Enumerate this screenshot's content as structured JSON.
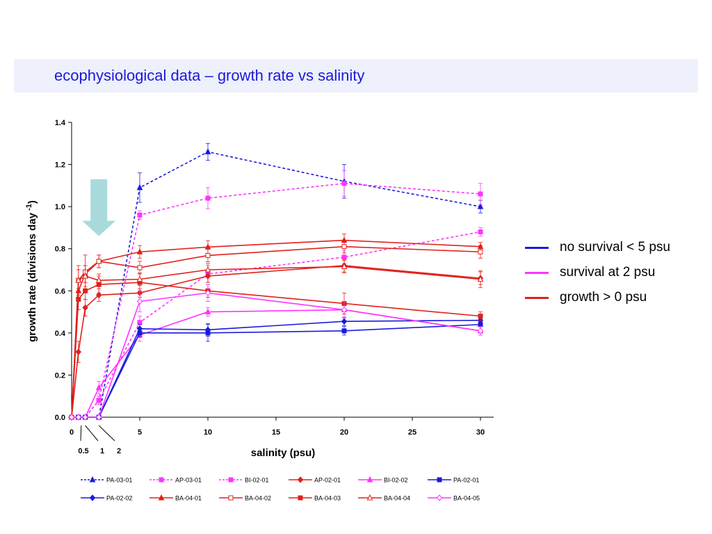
{
  "page": {
    "title": "ecophysiological data – growth rate vs salinity"
  },
  "side_legend": [
    {
      "label": "no survival < 5 psu",
      "color": "#1a1adc"
    },
    {
      "label": "survival at 2 psu",
      "color": "#ff33ff"
    },
    {
      "label": "growth > 0 psu",
      "color": "#e0201b"
    }
  ],
  "chart_data": {
    "type": "line",
    "xlabel": "salinity (psu)",
    "ylabel": "growth rate (divisions  day",
    "ylabel_sup": "-1",
    "ylabel_tail": ")",
    "xlim": [
      0,
      30
    ],
    "ylim": [
      0,
      1.4
    ],
    "xticks": [
      0,
      5,
      10,
      15,
      20,
      25,
      30
    ],
    "yticks": [
      "0.0",
      "0.2",
      "0.4",
      "0.6",
      "0.8",
      "1.0",
      "1.2",
      "1.4"
    ],
    "extra_xlabels": [
      "0.5",
      "1",
      "2"
    ],
    "extra_xvalues": [
      0.5,
      1,
      2
    ],
    "arrow": {
      "x": 2,
      "y_top": 1.13,
      "y_bottom": 0.86,
      "color": "#a8dadc"
    },
    "series": [
      {
        "name": "PA-03-01",
        "color": "#1a1adc",
        "dash": true,
        "marker": "triangle-filled",
        "x": [
          0,
          0.5,
          1,
          2,
          5,
          10,
          20,
          30
        ],
        "y": [
          0,
          0,
          0,
          0,
          1.09,
          1.26,
          1.12,
          1.0
        ],
        "err": [
          0,
          0,
          0,
          0,
          0.07,
          0.04,
          0.08,
          0.03
        ]
      },
      {
        "name": "AP-03-01",
        "color": "#ff33ff",
        "dash": true,
        "marker": "square-filled",
        "x": [
          0,
          0.5,
          1,
          2,
          5,
          10,
          20,
          30
        ],
        "y": [
          0,
          0,
          0,
          0.08,
          0.96,
          1.04,
          1.11,
          1.06
        ],
        "err": [
          0,
          0,
          0,
          0.02,
          0.02,
          0.05,
          0.06,
          0.05
        ]
      },
      {
        "name": "BI-02-01",
        "color": "#ff33ff",
        "dash": true,
        "marker": "square-filled",
        "x": [
          0,
          0.5,
          1,
          2,
          5,
          10,
          20,
          30
        ],
        "y": [
          0,
          0,
          0,
          0.08,
          0.45,
          0.68,
          0.76,
          0.88
        ],
        "err": [
          0,
          0,
          0,
          0.02,
          0.03,
          0.04,
          0.03,
          0.02
        ]
      },
      {
        "name": "AP-02-01",
        "color": "#e0201b",
        "dash": false,
        "marker": "diamond-filled",
        "x": [
          0,
          0.5,
          1,
          2,
          5,
          10,
          20,
          30
        ],
        "y": [
          0,
          0.31,
          0.52,
          0.58,
          0.59,
          0.67,
          0.72,
          0.66
        ],
        "err": [
          0,
          0.05,
          0.04,
          0.03,
          0.02,
          0.03,
          0.03,
          0.03
        ]
      },
      {
        "name": "BI-02-02",
        "color": "#ff33ff",
        "dash": false,
        "marker": "triangle-filled",
        "x": [
          0,
          0.5,
          1,
          2,
          5,
          10,
          20,
          30
        ],
        "y": [
          0,
          0,
          0,
          0.14,
          0.39,
          0.5,
          0.51,
          0.41
        ],
        "err": [
          0,
          0,
          0,
          0.03,
          0.03,
          0.02,
          0.02,
          0.02
        ]
      },
      {
        "name": "PA-02-01",
        "color": "#1a1adc",
        "dash": false,
        "marker": "square-filled",
        "x": [
          0,
          0.5,
          1,
          2,
          5,
          10,
          20,
          30
        ],
        "y": [
          0,
          0,
          0,
          0,
          0.4,
          0.4,
          0.41,
          0.44
        ],
        "err": [
          0,
          0,
          0,
          0,
          0.02,
          0.04,
          0.02,
          0.01
        ]
      },
      {
        "name": "PA-02-02",
        "color": "#1a1adc",
        "dash": false,
        "marker": "diamond-filled",
        "x": [
          0,
          0.5,
          1,
          2,
          5,
          10,
          20,
          30
        ],
        "y": [
          0,
          0,
          0,
          0,
          0.42,
          0.415,
          0.455,
          0.46
        ],
        "err": [
          0,
          0,
          0,
          0,
          0.02,
          0.03,
          0.02,
          0.01
        ]
      },
      {
        "name": "BA-04-01",
        "color": "#e0201b",
        "dash": false,
        "marker": "triangle-filled",
        "x": [
          0,
          0.5,
          1,
          2,
          5,
          10,
          20,
          30
        ],
        "y": [
          0,
          0.6,
          0.68,
          0.74,
          0.785,
          0.808,
          0.84,
          0.81
        ],
        "err": [
          0,
          0.04,
          0.04,
          0.03,
          0.03,
          0.03,
          0.03,
          0.02
        ]
      },
      {
        "name": "BA-04-02",
        "color": "#e0201b",
        "dash": false,
        "marker": "square-open",
        "x": [
          0,
          0.5,
          1,
          2,
          5,
          10,
          20,
          30
        ],
        "y": [
          0,
          0.65,
          0.69,
          0.74,
          0.71,
          0.768,
          0.81,
          0.785
        ],
        "err": [
          0,
          0.07,
          0.08,
          0.03,
          0.03,
          0.03,
          0.03,
          0.03
        ]
      },
      {
        "name": "BA-04-03",
        "color": "#e0201b",
        "dash": false,
        "marker": "square-filled",
        "x": [
          0,
          0.5,
          1,
          2,
          5,
          10,
          20,
          30
        ],
        "y": [
          0,
          0.56,
          0.6,
          0.63,
          0.64,
          0.6,
          0.54,
          0.48
        ],
        "err": [
          0,
          0.05,
          0.04,
          0.04,
          0.04,
          0.03,
          0.05,
          0.02
        ]
      },
      {
        "name": "BA-04-04",
        "color": "#e0201b",
        "dash": false,
        "marker": "triangle-open",
        "x": [
          0,
          0.5,
          1,
          2,
          5,
          10,
          20,
          30
        ],
        "y": [
          0,
          0.65,
          0.67,
          0.65,
          0.655,
          0.7,
          0.715,
          0.655
        ],
        "err": [
          0,
          0.05,
          0.05,
          0.03,
          0.03,
          0.03,
          0.03,
          0.04
        ]
      },
      {
        "name": "BA-04-05",
        "color": "#ff33ff",
        "dash": false,
        "marker": "diamond-open",
        "x": [
          0,
          0.5,
          1,
          2,
          5,
          10,
          20,
          30
        ],
        "y": [
          0,
          0,
          0,
          0,
          0.55,
          0.59,
          0.51,
          0.41
        ],
        "err": [
          0,
          0,
          0,
          0,
          0.05,
          0.04,
          0.04,
          0.02
        ]
      }
    ]
  }
}
